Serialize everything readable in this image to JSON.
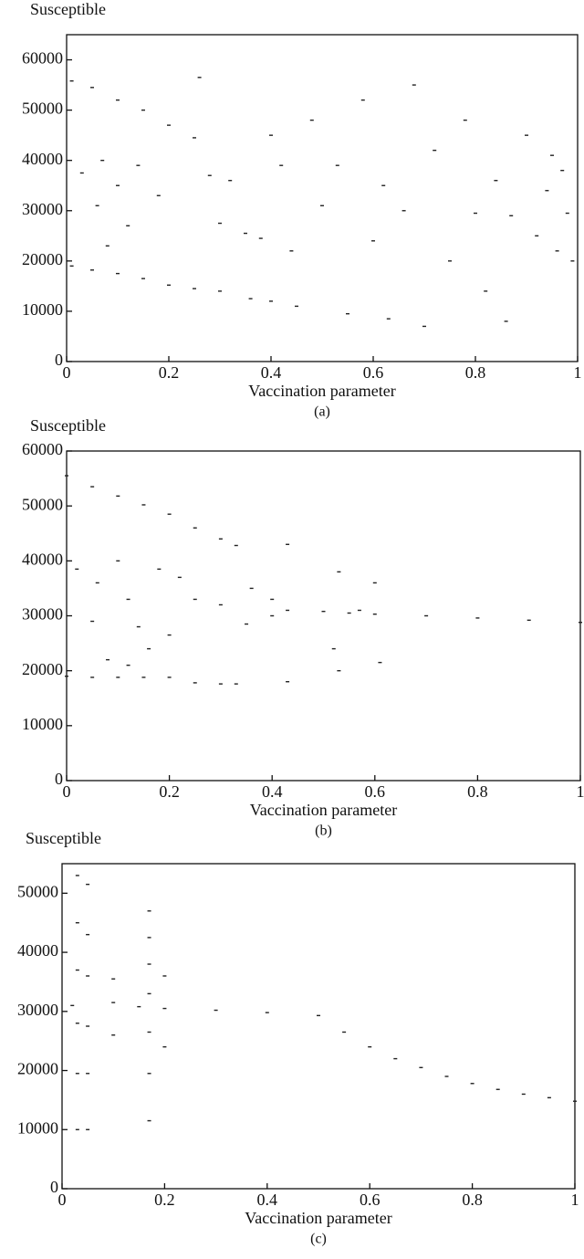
{
  "chart_data": [
    {
      "type": "scatter",
      "ylabel": "Susceptible",
      "xlabel": "Vaccination parameter",
      "caption": "(a)",
      "color": "#222222",
      "xlim": [
        0,
        1
      ],
      "xticks": [
        0,
        0.2,
        0.4,
        0.6,
        0.8,
        1
      ],
      "ylim": [
        0,
        65000
      ],
      "yticks": [
        0,
        10000,
        20000,
        30000,
        40000,
        50000,
        60000
      ],
      "x": [
        0.01,
        0.05,
        0.1,
        0.15,
        0.2,
        0.25,
        0.01,
        0.05,
        0.1,
        0.15,
        0.2,
        0.25,
        0.03,
        0.07,
        0.1,
        0.12,
        0.08,
        0.06,
        0.14,
        0.18,
        0.28,
        0.3,
        0.32,
        0.35,
        0.38,
        0.4,
        0.42,
        0.44,
        0.3,
        0.36,
        0.4,
        0.45,
        0.5,
        0.53,
        0.55,
        0.58,
        0.6,
        0.62,
        0.63,
        0.66,
        0.68,
        0.7,
        0.72,
        0.75,
        0.78,
        0.8,
        0.82,
        0.84,
        0.86,
        0.87,
        0.9,
        0.92,
        0.94,
        0.95,
        0.96,
        0.98,
        0.97,
        0.99,
        0.48,
        0.26
      ],
      "values": [
        55800,
        54500,
        52000,
        50000,
        47000,
        44500,
        19000,
        18200,
        17500,
        16500,
        15200,
        14500,
        37500,
        40000,
        35000,
        27000,
        23000,
        31000,
        39000,
        33000,
        37000,
        27500,
        36000,
        25500,
        24500,
        45000,
        39000,
        22000,
        14000,
        12500,
        12000,
        11000,
        31000,
        39000,
        9500,
        52000,
        24000,
        35000,
        8500,
        30000,
        55000,
        7000,
        42000,
        20000,
        48000,
        29500,
        14000,
        36000,
        8000,
        29000,
        45000,
        25000,
        34000,
        41000,
        22000,
        29500,
        38000,
        20000,
        48000,
        56500
      ]
    },
    {
      "type": "scatter",
      "ylabel": "Susceptible",
      "xlabel": "Vaccination parameter",
      "caption": "(b)",
      "color": "#222222",
      "xlim": [
        0,
        1
      ],
      "xticks": [
        0,
        0.2,
        0.4,
        0.6,
        0.8,
        1
      ],
      "ylim": [
        0,
        60000
      ],
      "yticks": [
        0,
        10000,
        20000,
        30000,
        40000,
        50000,
        60000
      ],
      "x": [
        0,
        0.05,
        0.1,
        0.15,
        0.2,
        0.25,
        0.3,
        0.33,
        0,
        0.05,
        0.1,
        0.15,
        0.2,
        0.25,
        0.3,
        0.33,
        0.02,
        0.06,
        0.1,
        0.12,
        0.14,
        0.16,
        0.18,
        0.2,
        0.08,
        0.05,
        0.22,
        0.25,
        0.3,
        0.35,
        0.4,
        0.43,
        0.43,
        0.43,
        0.5,
        0.53,
        0.53,
        0.55,
        0.6,
        0.7,
        0.8,
        0.9,
        1,
        0.36,
        0.4,
        0.6,
        0.61,
        0.52,
        0.57,
        0.12
      ],
      "values": [
        55500,
        53500,
        51800,
        50200,
        48500,
        46000,
        44000,
        42800,
        19000,
        18800,
        18800,
        18800,
        18800,
        17800,
        17600,
        17600,
        38500,
        36000,
        40000,
        33000,
        28000,
        24000,
        38500,
        26500,
        22000,
        29000,
        37000,
        33000,
        32000,
        28500,
        30000,
        31000,
        43000,
        18000,
        30800,
        38000,
        20000,
        30500,
        30300,
        30000,
        29600,
        29200,
        28800,
        35000,
        33000,
        36000,
        21500,
        24000,
        31000,
        21000
      ]
    },
    {
      "type": "scatter",
      "ylabel": "Susceptible",
      "xlabel": "Vaccination parameter",
      "caption": "(c)",
      "color": "#222222",
      "xlim": [
        0,
        1
      ],
      "xticks": [
        0,
        0.2,
        0.4,
        0.6,
        0.8,
        1
      ],
      "ylim": [
        0,
        55000
      ],
      "yticks": [
        0,
        10000,
        20000,
        30000,
        40000,
        50000
      ],
      "x": [
        0.02,
        0.03,
        0.05,
        0.03,
        0.05,
        0.03,
        0.05,
        0.03,
        0.05,
        0.03,
        0.05,
        0.03,
        0.05,
        0.1,
        0.15,
        0.17,
        0.17,
        0.17,
        0.17,
        0.17,
        0.17,
        0.17,
        0.2,
        0.2,
        0.1,
        0.1,
        0.2,
        0.3,
        0.4,
        0.5,
        0.55,
        0.6,
        0.65,
        0.7,
        0.75,
        0.8,
        0.85,
        0.9,
        0.95,
        1
      ],
      "values": [
        31000,
        53000,
        51500,
        45000,
        43000,
        37000,
        36000,
        28000,
        27500,
        19500,
        19500,
        10000,
        10000,
        31500,
        30800,
        47000,
        42500,
        38000,
        33000,
        26500,
        19500,
        11500,
        36000,
        24000,
        35500,
        26000,
        30500,
        30200,
        29800,
        29300,
        26500,
        24000,
        22000,
        20500,
        19000,
        17800,
        16800,
        16000,
        15400,
        14800
      ]
    }
  ]
}
